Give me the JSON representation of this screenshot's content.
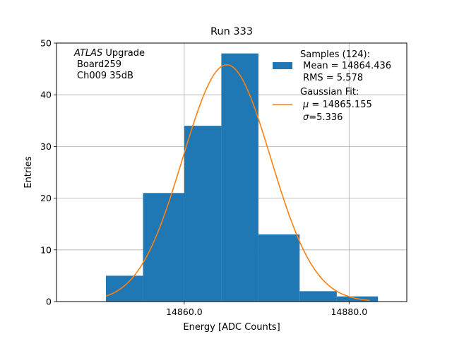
{
  "chart_data": {
    "type": "bar",
    "title": "Run 333",
    "xlabel": "Energy [ADC Counts]",
    "ylabel": "Entries",
    "xlim": [
      14844.5,
      14887
    ],
    "ylim": [
      0,
      50
    ],
    "x_ticks": [
      14860.0,
      14880.0
    ],
    "x_tick_labels": [
      "14860.0",
      "14880.0"
    ],
    "y_ticks": [
      0,
      10,
      20,
      30,
      40,
      50
    ],
    "y_tick_labels": [
      "0",
      "10",
      "20",
      "30",
      "40",
      "50"
    ],
    "grid": true,
    "bins": [
      {
        "x0": 14850.5,
        "x1": 14855.0,
        "count": 5
      },
      {
        "x0": 14855.0,
        "x1": 14860.0,
        "count": 21
      },
      {
        "x0": 14860.0,
        "x1": 14864.5,
        "count": 34
      },
      {
        "x0": 14864.5,
        "x1": 14869.0,
        "count": 48
      },
      {
        "x0": 14869.0,
        "x1": 14874.0,
        "count": 13
      },
      {
        "x0": 14874.0,
        "x1": 14878.5,
        "count": 2
      },
      {
        "x0": 14878.5,
        "x1": 14883.5,
        "count": 1
      }
    ],
    "fit": {
      "type": "gaussian",
      "mu": 14865.155,
      "sigma": 5.336,
      "peak": 45.8,
      "x_range": [
        14850.5,
        14882.5
      ]
    },
    "annotation": {
      "atlas": "ATLAS",
      "upgrade": " Upgrade",
      "board": "Board259",
      "channel": "Ch009 35dB"
    },
    "legend": {
      "position": "top-right",
      "samples": {
        "line1": "Samples (124):",
        "line2": " Mean = 14864.436",
        "line3": " RMS = 5.578"
      },
      "fit": {
        "line1": "Gaussian Fit:",
        "mu_symbol": "μ",
        "mu_value": " = 14865.155",
        "sigma_symbol": "σ",
        "sigma_value": "=5.336"
      }
    },
    "colors": {
      "bars": "#1f77b4",
      "fit": "#ff7f0e",
      "grid": "#b0b0b0"
    }
  }
}
